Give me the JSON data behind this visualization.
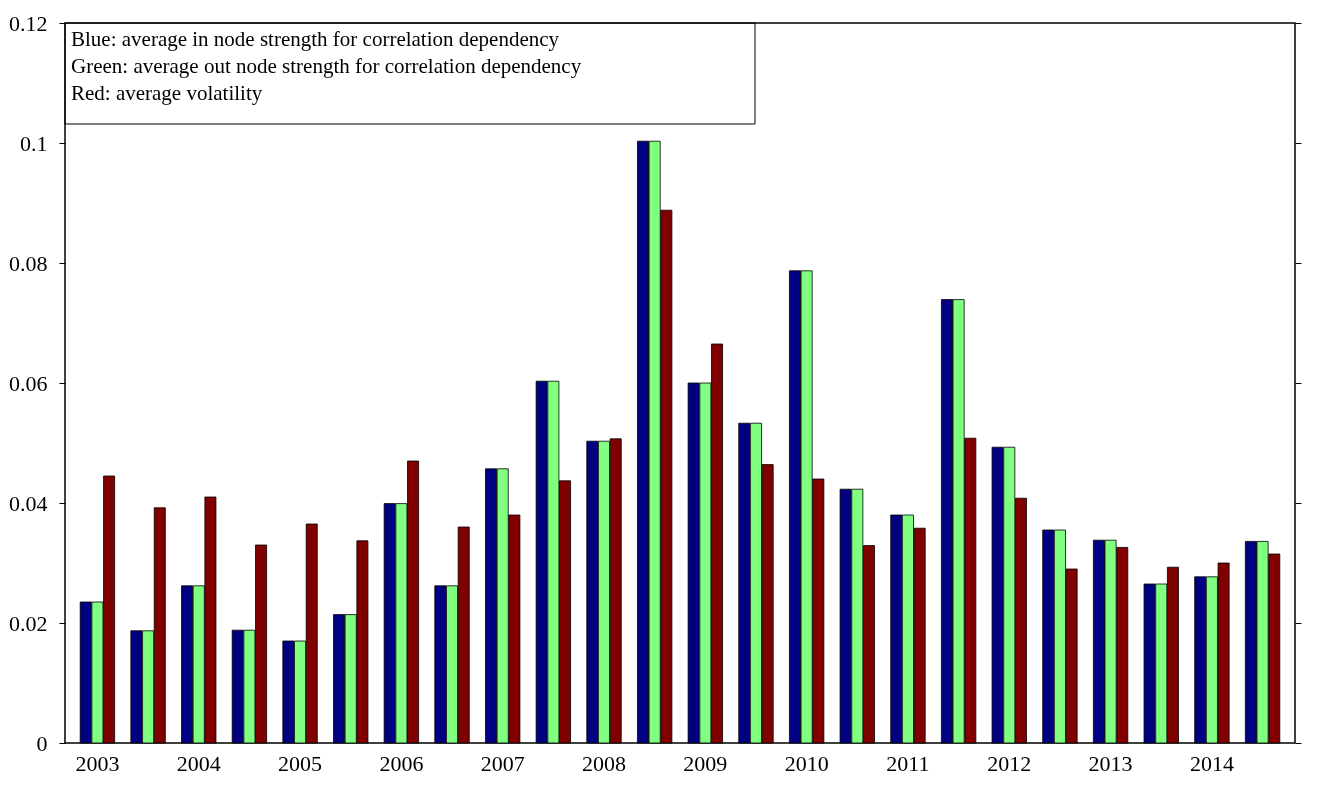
{
  "chart_data": {
    "type": "bar",
    "categories": [
      "2003",
      null,
      "2004",
      null,
      "2005",
      null,
      "2006",
      null,
      "2007",
      null,
      "2008",
      null,
      "2009",
      null,
      "2010",
      null,
      "2011",
      null,
      "2012",
      null,
      "2013",
      null,
      "2014",
      null
    ],
    "series": [
      {
        "color": "#000080",
        "values": [
          0.0235,
          0.0187,
          0.0262,
          0.0188,
          0.017,
          0.0214,
          0.0399,
          0.0262,
          0.0457,
          0.0603,
          0.0503,
          0.1003,
          0.06,
          0.0533,
          0.0787,
          0.0423,
          0.038,
          0.0739,
          0.0493,
          0.0355,
          0.0338,
          0.0265,
          0.0277,
          0.0336
        ]
      },
      {
        "color": "#80ff80",
        "values": [
          0.0235,
          0.0187,
          0.0262,
          0.0188,
          0.017,
          0.0214,
          0.0399,
          0.0262,
          0.0457,
          0.0603,
          0.0503,
          0.1003,
          0.06,
          0.0533,
          0.0787,
          0.0423,
          0.038,
          0.0739,
          0.0493,
          0.0355,
          0.0338,
          0.0265,
          0.0277,
          0.0336
        ]
      },
      {
        "color": "#800000",
        "values": [
          0.0445,
          0.0392,
          0.041,
          0.033,
          0.0365,
          0.0337,
          0.047,
          0.036,
          0.038,
          0.0437,
          0.0507,
          0.0888,
          0.0665,
          0.0464,
          0.044,
          0.0329,
          0.0358,
          0.0508,
          0.0408,
          0.029,
          0.0326,
          0.0293,
          0.03,
          0.0315
        ]
      }
    ],
    "ylim": [
      0,
      0.12
    ],
    "yticks": [
      0,
      0.02,
      0.04,
      0.06,
      0.08,
      0.1,
      0.12
    ],
    "grid": false,
    "legend": false,
    "annotations": [
      "Blue: average in node strength for correlation dependency",
      "Green: average out node strength for correlation dependency",
      "Red: average volatility"
    ]
  }
}
